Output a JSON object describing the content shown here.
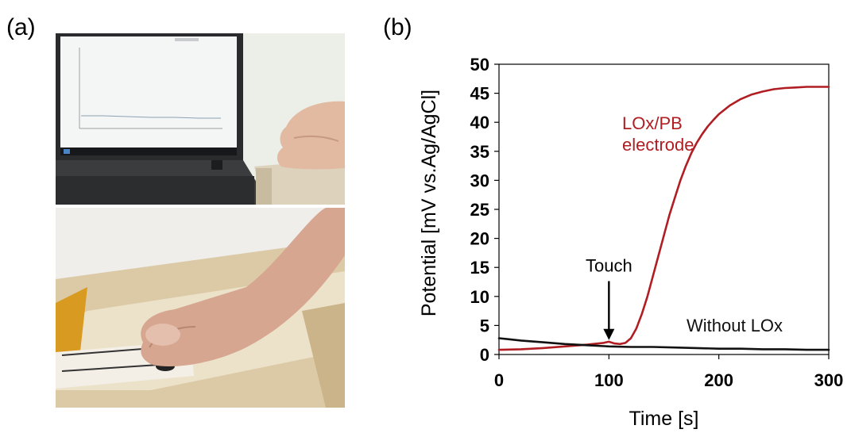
{
  "figure": {
    "panel_a_label": "(a)",
    "panel_b_label": "(b)"
  },
  "chart_data": {
    "type": "line",
    "xlabel": "Time  [s]",
    "ylabel": "Potential [mV vs.Ag/AgCl]",
    "xlim": [
      0,
      300
    ],
    "ylim": [
      0,
      50
    ],
    "xticks": [
      0,
      100,
      200,
      300
    ],
    "yticks": [
      0,
      5,
      10,
      15,
      20,
      25,
      30,
      35,
      40,
      45,
      50
    ],
    "grid": false,
    "series": [
      {
        "name": "LOx/PB electrode",
        "label_lines": [
          "LOx/PB",
          "electrode"
        ],
        "color": "#b01e23",
        "x": [
          0,
          20,
          40,
          60,
          80,
          95,
          100,
          105,
          110,
          115,
          120,
          125,
          130,
          135,
          140,
          145,
          150,
          155,
          160,
          165,
          170,
          175,
          180,
          185,
          190,
          195,
          200,
          210,
          220,
          230,
          240,
          250,
          260,
          270,
          280,
          290,
          300
        ],
        "y": [
          0.8,
          0.9,
          1.1,
          1.4,
          1.7,
          2.0,
          2.2,
          1.9,
          1.8,
          2.0,
          2.8,
          4.5,
          7.0,
          10.0,
          13.5,
          17.0,
          20.5,
          24.0,
          27.0,
          30.0,
          32.5,
          34.7,
          36.5,
          38.0,
          39.3,
          40.4,
          41.4,
          42.9,
          44.0,
          44.8,
          45.3,
          45.7,
          45.9,
          46.0,
          46.1,
          46.1,
          46.1
        ]
      },
      {
        "name": "Without LOx",
        "label_lines": [
          "Without LOx"
        ],
        "color": "#111111",
        "x": [
          0,
          20,
          40,
          60,
          80,
          100,
          120,
          140,
          160,
          180,
          200,
          220,
          240,
          260,
          280,
          300
        ],
        "y": [
          2.8,
          2.4,
          2.1,
          1.8,
          1.6,
          1.4,
          1.3,
          1.3,
          1.2,
          1.1,
          1.0,
          1.0,
          0.9,
          0.9,
          0.8,
          0.8
        ]
      }
    ],
    "annotations": [
      {
        "text": "Touch",
        "x": 100,
        "y_from": 11,
        "y_to": 2.5,
        "type": "arrow"
      }
    ]
  }
}
